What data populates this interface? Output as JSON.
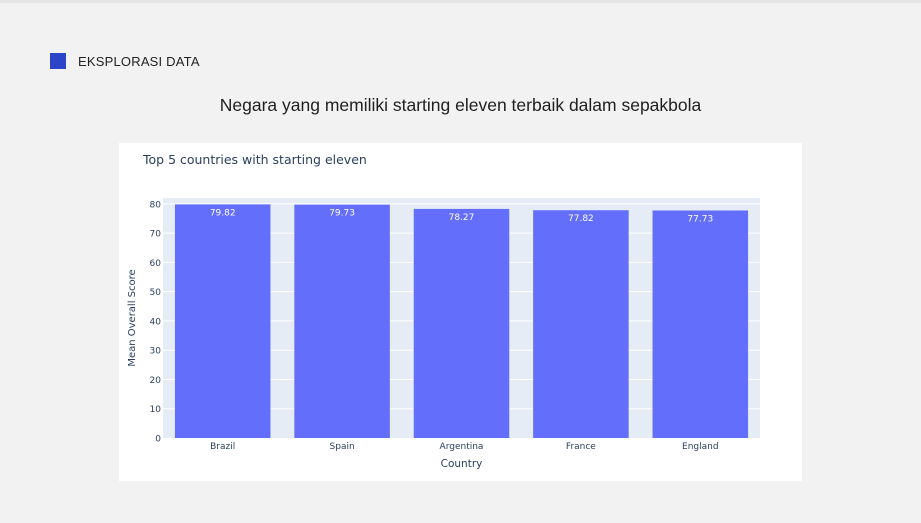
{
  "section": {
    "label": "EKSPLORASI DATA",
    "accent_color": "#2b45c6"
  },
  "page_title": "Negara yang memiliki starting eleven terbaik dalam sepakbola",
  "chart_data": {
    "type": "bar",
    "title": "Top 5 countries with starting eleven",
    "xlabel": "Country",
    "ylabel": "Mean Overall Score",
    "categories": [
      "Brazil",
      "Spain",
      "Argentina",
      "France",
      "England"
    ],
    "values": [
      79.82,
      79.73,
      78.27,
      77.82,
      77.73
    ],
    "value_labels": [
      "79.82",
      "79.73",
      "78.27",
      "77.82",
      "77.73"
    ],
    "ylim": [
      0,
      82
    ],
    "yticks": [
      0,
      10,
      20,
      30,
      40,
      50,
      60,
      70,
      80
    ],
    "grid": true,
    "bar_color": "#636efa",
    "plot_bg": "#e5ecf6"
  }
}
